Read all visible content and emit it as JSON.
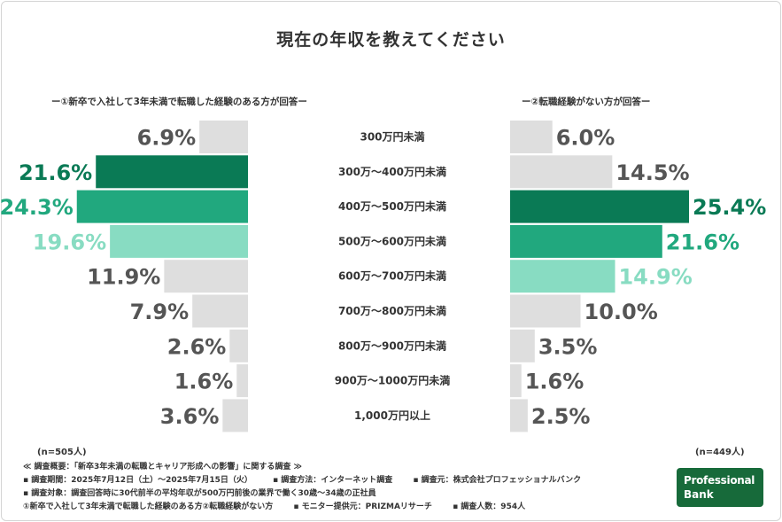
{
  "title": "現在の年収を教えてください",
  "subtitle_left": "ー①新卒で入社して3年未満で転職した経験のある方が回答ー",
  "subtitle_right": "ー②転職経験がない方が回答ー",
  "n_left": "(n=505人)",
  "n_right": "(n=449人)",
  "footer": {
    "line1": "≪ 調査概要：「新卒3年未満の転職とキャリア形成への影響」に関する調査 ≫",
    "line2a": "▪ 調査期間：2025年7月12日（土）〜2025年7月15日（火）",
    "line2b": "▪ 調査方法：インターネット調査",
    "line2c": "▪ 調査元：株式会社プロフェッショナルバンク",
    "line3": "▪ 調査対象：調査回答時に30代前半の平均年収が500万円前後の業界で働く30歳〜34歳の正社員",
    "line4a": "①新卒で入社して3年未満で転職した経験のある方②転職経験がない方",
    "line4b": "▪ モニター提供元：PRIZMAリサーチ",
    "line4c": "▪ 調査人数：954人"
  },
  "logo": {
    "line1": "Professional",
    "line2": "Bank"
  },
  "colors": {
    "gray_bar": "#dedede",
    "gray_text": "#555555",
    "dark_green": "#0a7a55",
    "mid_green": "#21a87e",
    "light_green": "#88dcc2"
  },
  "chart_data": {
    "type": "bar",
    "categories": [
      "300万円未満",
      "300万〜400万円未満",
      "400万〜500万円未満",
      "500万〜600万円未満",
      "600万〜700万円未満",
      "700万〜800万円未満",
      "800万〜900万円未満",
      "900万〜1000万円未満",
      "1,000万円以上"
    ],
    "series": [
      {
        "values": [
          6.9,
          21.6,
          24.3,
          19.6,
          11.9,
          7.9,
          2.6,
          1.6,
          3.6
        ]
      },
      {
        "values": [
          6.0,
          14.5,
          25.4,
          21.6,
          14.9,
          10.0,
          3.5,
          1.6,
          2.5
        ]
      }
    ],
    "unit": "%",
    "highlight_left": [
      "mid",
      "dark",
      "light"
    ],
    "highlight_right": [
      "dark",
      "mid",
      "light"
    ],
    "xlim": [
      0,
      25.4
    ]
  }
}
